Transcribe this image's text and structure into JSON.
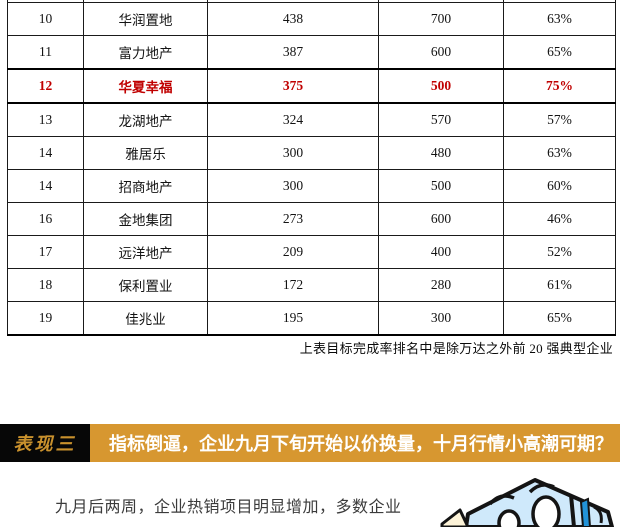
{
  "table": {
    "rows": [
      {
        "rank": "10",
        "company": "华润置地",
        "sales": "438",
        "target": "700",
        "rate": "63%",
        "highlight": false
      },
      {
        "rank": "11",
        "company": "富力地产",
        "sales": "387",
        "target": "600",
        "rate": "65%",
        "highlight": false
      },
      {
        "rank": "12",
        "company": "华夏幸福",
        "sales": "375",
        "target": "500",
        "rate": "75%",
        "highlight": true
      },
      {
        "rank": "13",
        "company": "龙湖地产",
        "sales": "324",
        "target": "570",
        "rate": "57%",
        "highlight": false
      },
      {
        "rank": "14",
        "company": "雅居乐",
        "sales": "300",
        "target": "480",
        "rate": "63%",
        "highlight": false
      },
      {
        "rank": "14",
        "company": "招商地产",
        "sales": "300",
        "target": "500",
        "rate": "60%",
        "highlight": false
      },
      {
        "rank": "16",
        "company": "金地集团",
        "sales": "273",
        "target": "600",
        "rate": "46%",
        "highlight": false
      },
      {
        "rank": "17",
        "company": "远洋地产",
        "sales": "209",
        "target": "400",
        "rate": "52%",
        "highlight": false
      },
      {
        "rank": "18",
        "company": "保利置业",
        "sales": "172",
        "target": "280",
        "rate": "61%",
        "highlight": false
      },
      {
        "rank": "19",
        "company": "佳兆业",
        "sales": "195",
        "target": "300",
        "rate": "65%",
        "highlight": false
      }
    ]
  },
  "footnote": "上表目标完成率排名中是除万达之外前 20 强典型企业",
  "section": {
    "label": "表现三",
    "title": "指标倒逼，企业九月下旬开始以价换量，十月行情小高潮可期？"
  },
  "paragraph": "九月后两周，企业热销项目明显增加，多数企业",
  "colors": {
    "banner_orange": "#d79730",
    "label_background": "#070707",
    "label_gold": "#c9912d",
    "highlight_red": "#c00000",
    "illustration_blue": "#cfe9fb",
    "illustration_accent": "#2293d8"
  },
  "illustration": "light-blue-cartoon-box"
}
